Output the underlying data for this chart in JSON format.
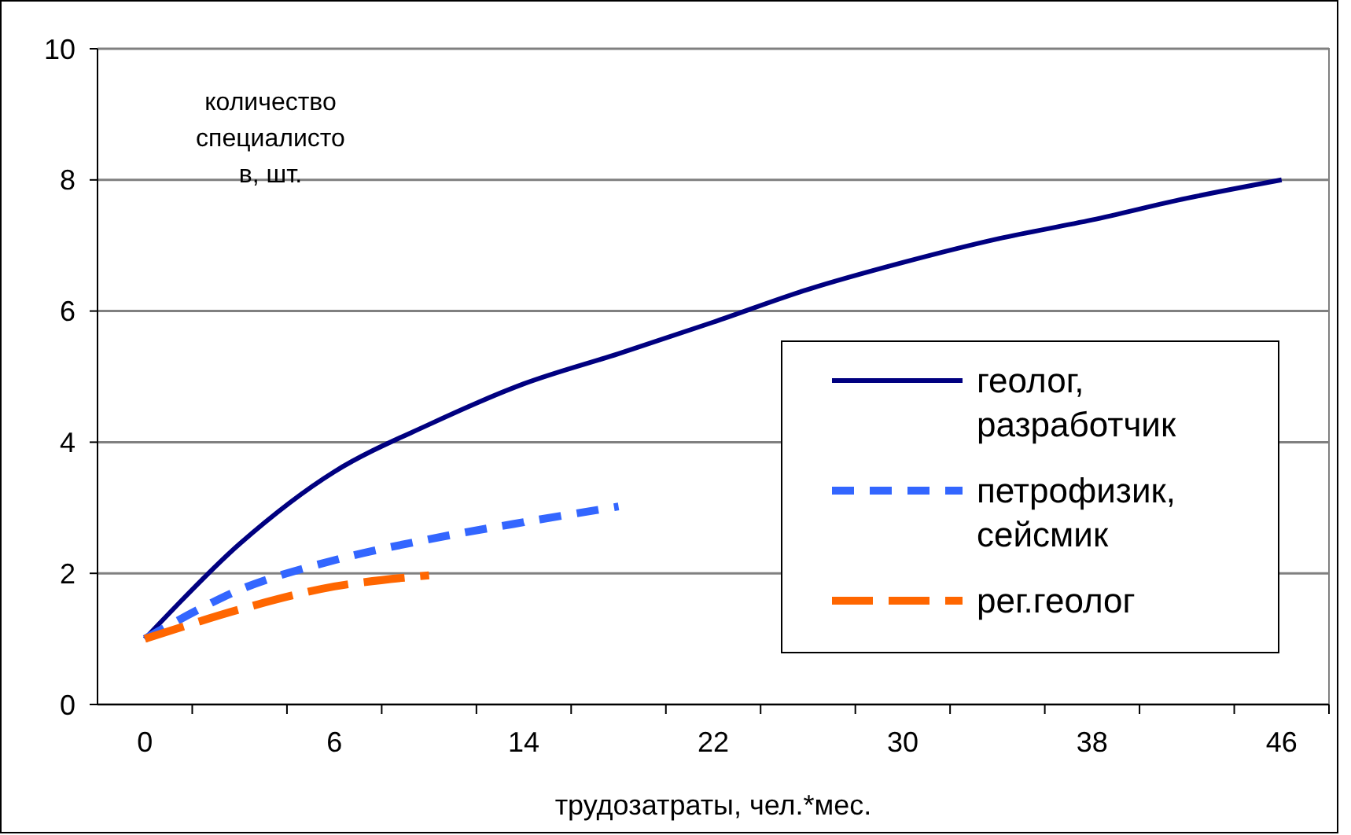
{
  "chart_data": {
    "type": "line",
    "xlabel": "трудозатраты, чел.*мес.",
    "ylabel": "количество специалистов, шт.",
    "categories": [
      "0",
      null,
      "6",
      null,
      "14",
      null,
      "22",
      null,
      "30",
      null,
      "38",
      null,
      "46"
    ],
    "ylim": [
      0,
      10
    ],
    "yticks": [
      0,
      2,
      4,
      6,
      8,
      10
    ],
    "grid": "y",
    "legend": "right",
    "marker": "none",
    "series": [
      {
        "name": "геолог, разработчик",
        "color": "#000080",
        "line_style": "solid",
        "values": [
          1.0,
          2.45,
          3.55,
          4.27,
          4.89,
          5.35,
          5.83,
          6.33,
          6.74,
          7.1,
          7.39,
          7.72,
          8.0
        ]
      },
      {
        "name": "петрофизик, сейсмик",
        "color": "#3366ff",
        "line_style": "dashed",
        "values": [
          1.0,
          1.75,
          2.2,
          2.52,
          2.78,
          3.02,
          null,
          null,
          null,
          null,
          null,
          null,
          null
        ]
      },
      {
        "name": "рег.геолог",
        "color": "#ff6600",
        "line_style": "dashed",
        "values": [
          1.0,
          1.45,
          1.8,
          1.97,
          null,
          null,
          null,
          null,
          null,
          null,
          null,
          null,
          null
        ]
      }
    ]
  }
}
